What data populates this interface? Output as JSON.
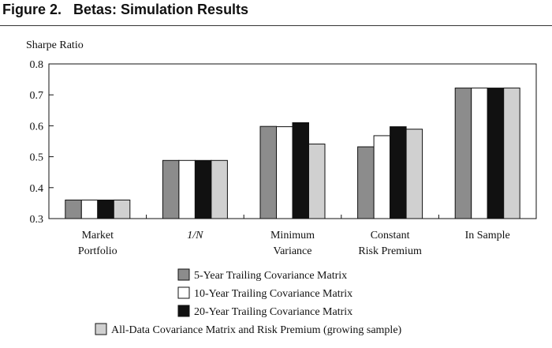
{
  "figure_title": "Figure 2.   Betas: Simulation Results",
  "colors": {
    "series_fills": [
      "#8c8c8c",
      "#ffffff",
      "#111111",
      "#d0d0d0"
    ],
    "stroke": "#111111"
  },
  "chart_data": {
    "type": "bar",
    "title": "",
    "ylabel": "Sharpe Ratio",
    "xlabel": "",
    "ylim": [
      0.3,
      0.8
    ],
    "yticks": [
      "0.3",
      "0.4",
      "0.5",
      "0.6",
      "0.7",
      "0.8"
    ],
    "grid": false,
    "legend_position": "bottom",
    "categories": [
      [
        "Market",
        "Portfolio"
      ],
      [
        "1/N"
      ],
      [
        "Minimum",
        "Variance"
      ],
      [
        "Constant",
        "Risk Premium"
      ],
      [
        "In Sample"
      ]
    ],
    "series": [
      {
        "name": "5-Year Trailing Covariance Matrix",
        "values": [
          0.36,
          0.488,
          0.598,
          0.532,
          0.722
        ]
      },
      {
        "name": "10-Year Trailing Covariance Matrix",
        "values": [
          0.36,
          0.488,
          0.597,
          0.568,
          0.722
        ]
      },
      {
        "name": "20-Year Trailing Covariance Matrix",
        "values": [
          0.36,
          0.488,
          0.61,
          0.597,
          0.722
        ]
      },
      {
        "name": "All-Data Covariance Matrix and Risk Premium (growing sample)",
        "values": [
          0.36,
          0.488,
          0.541,
          0.589,
          0.722
        ]
      }
    ]
  }
}
